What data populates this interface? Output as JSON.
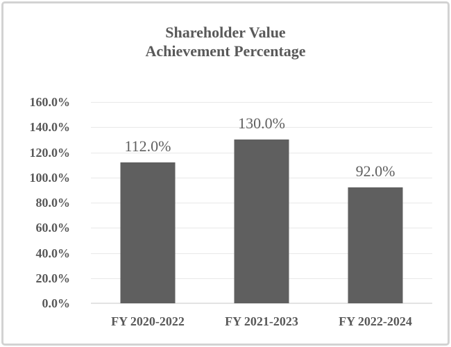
{
  "chart_data": {
    "type": "bar",
    "title": "Shareholder Value Achievement Percentage",
    "title_lines": [
      "Shareholder Value",
      "Achievement Percentage"
    ],
    "categories": [
      "FY 2020-2022",
      "FY 2021-2023",
      "FY 2022-2024"
    ],
    "values": [
      112.0,
      130.0,
      92.0
    ],
    "data_labels": [
      "112.0%",
      "130.0%",
      "92.0%"
    ],
    "xlabel": "",
    "ylabel": "",
    "ylim": [
      0,
      160
    ],
    "y_tick_step": 20,
    "y_ticks": [
      {
        "value": 160,
        "label": "160.0%"
      },
      {
        "value": 140,
        "label": "140.0%"
      },
      {
        "value": 120,
        "label": "120.0%"
      },
      {
        "value": 100,
        "label": "100.0%"
      },
      {
        "value": 80,
        "label": "80.0%"
      },
      {
        "value": 60,
        "label": "60.0%"
      },
      {
        "value": 40,
        "label": "40.0%"
      },
      {
        "value": 20,
        "label": "20.0%"
      },
      {
        "value": 0,
        "label": "0.0%"
      }
    ],
    "grid": true,
    "legend": false,
    "colors": {
      "bar": "#5f5f5f",
      "text": "#595959",
      "data_label": "#5f5f5f",
      "gridline": "#e8e8e8",
      "axis_line": "#e3e3e3",
      "frame_border": "#d2d2d2",
      "background": "#ffffff"
    }
  }
}
